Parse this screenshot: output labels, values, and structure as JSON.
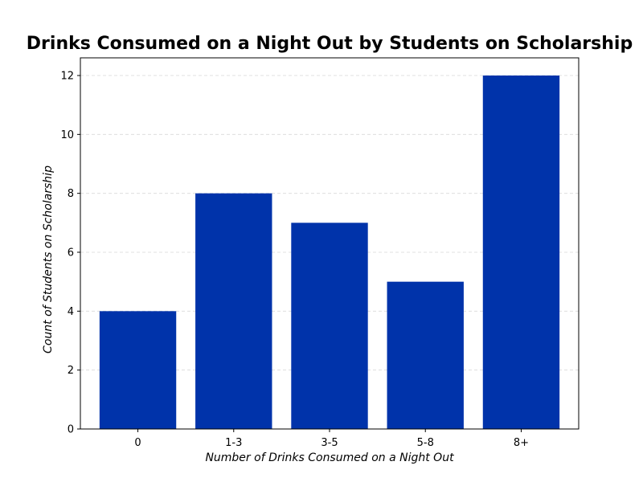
{
  "chart_data": {
    "type": "bar",
    "title": "Drinks Consumed on a Night Out by Students on Scholarship",
    "xlabel": "Number of Drinks Consumed on a Night Out",
    "ylabel": "Count of Students on Scholarship",
    "categories": [
      "0",
      "1-3",
      "3-5",
      "5-8",
      "8+"
    ],
    "values": [
      4,
      8,
      7,
      5,
      12
    ],
    "ylim": [
      0,
      12.6
    ],
    "yticks": [
      0,
      2,
      4,
      6,
      8,
      10,
      12
    ],
    "grid": "horizontal dashed",
    "bar_color": "#0033aa"
  }
}
